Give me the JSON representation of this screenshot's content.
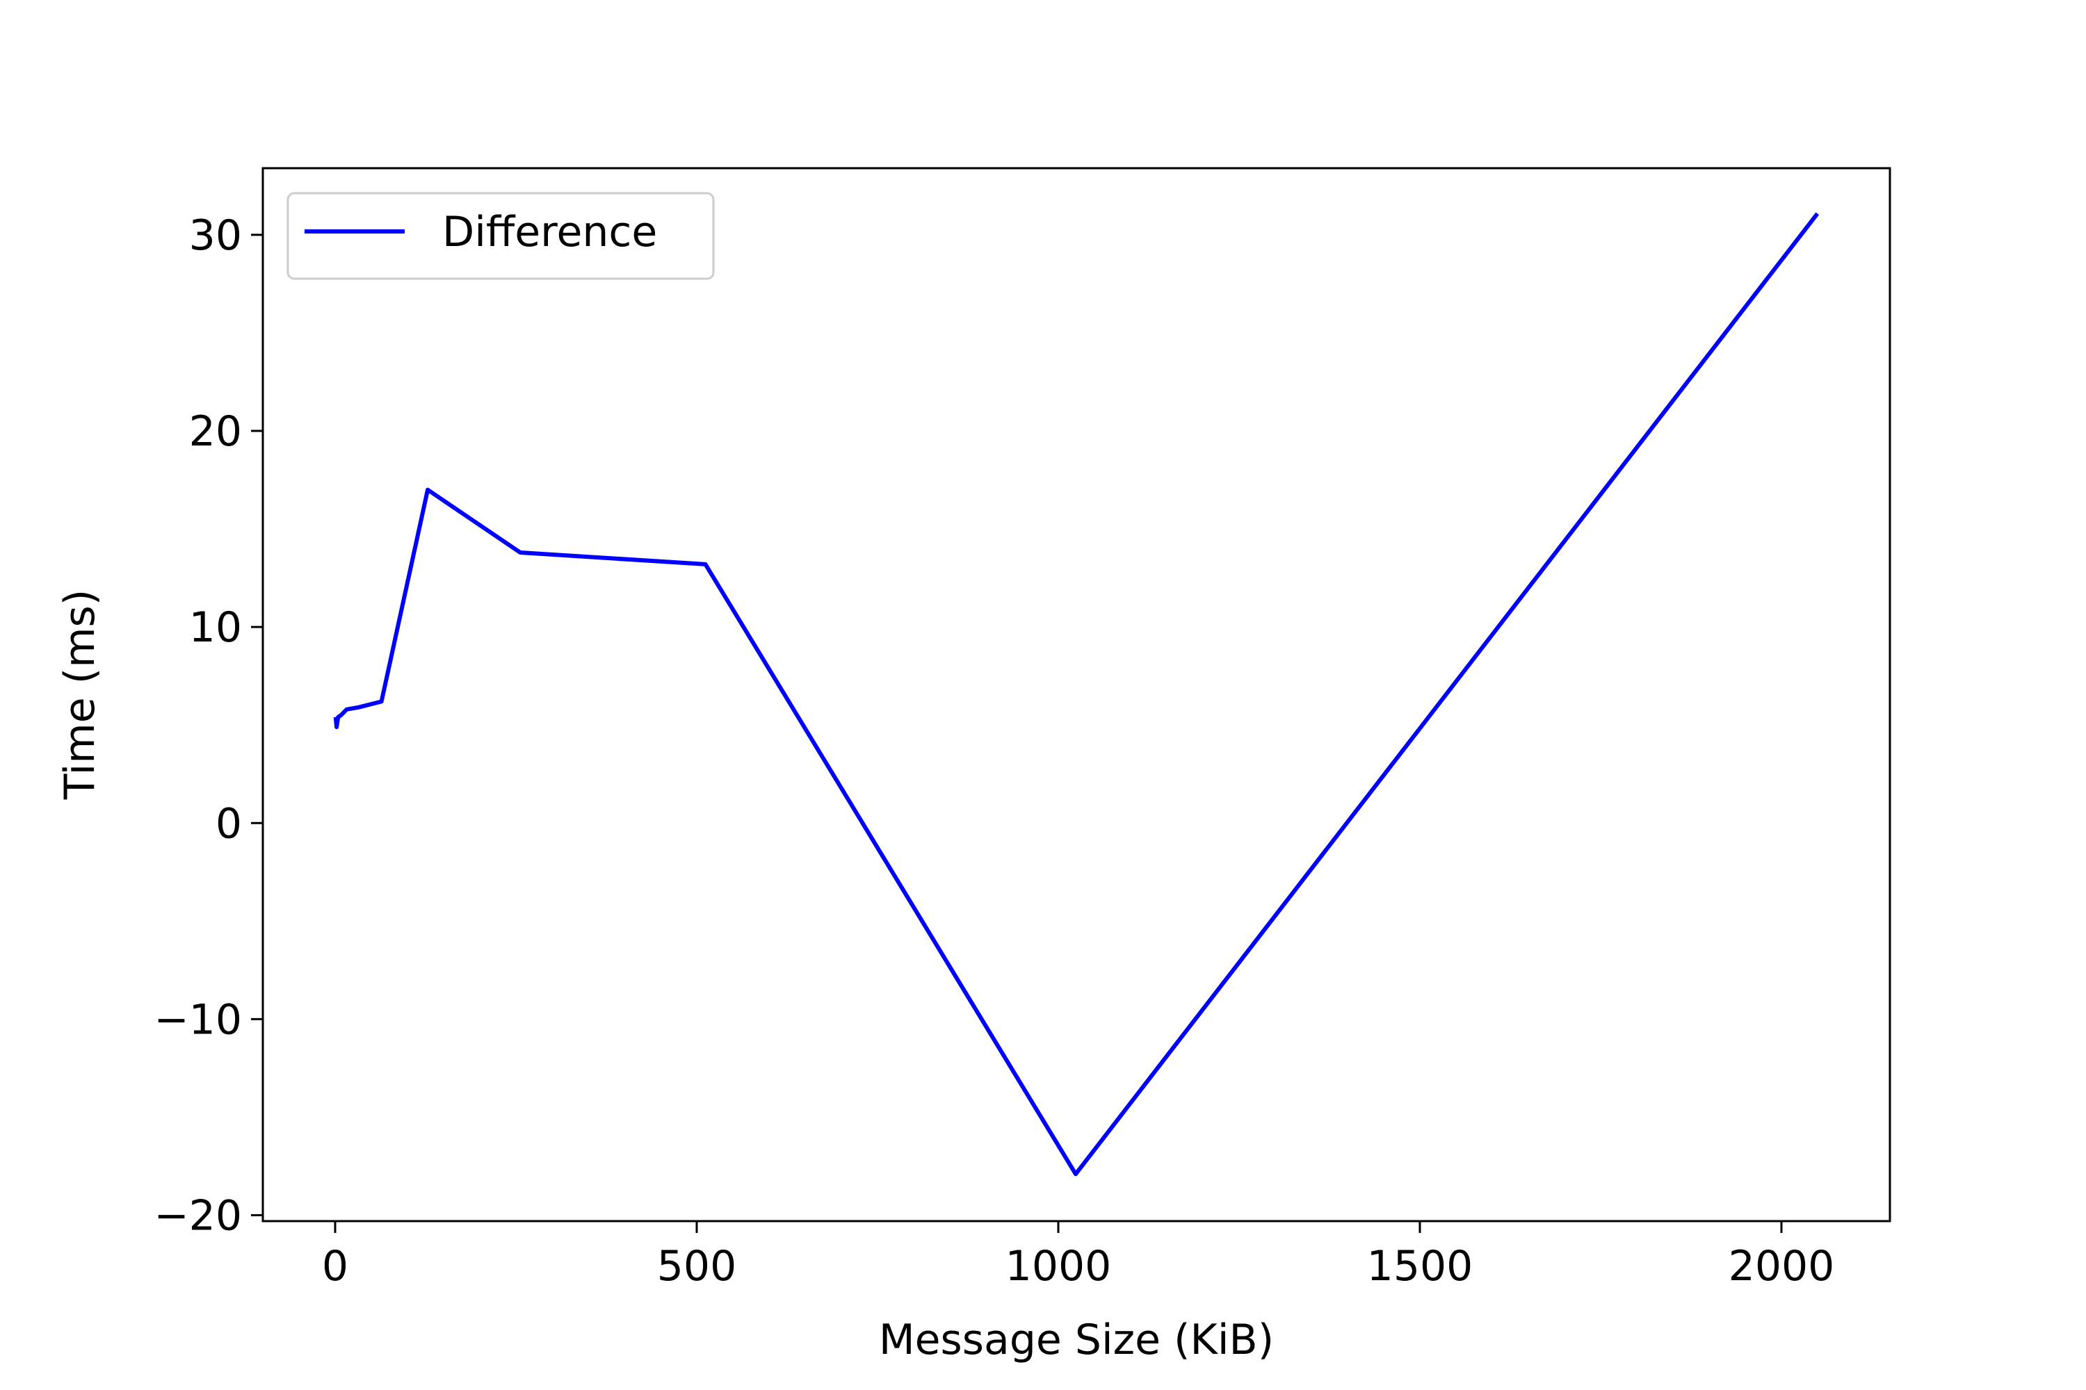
{
  "chart_data": {
    "type": "line",
    "xlabel": "Message Size (KiB)",
    "ylabel": "Time (ms)",
    "xlim": [
      -100,
      2150
    ],
    "ylim": [
      -20.3,
      33.4
    ],
    "x_ticks": [
      0,
      500,
      1000,
      1500,
      2000
    ],
    "x_tick_labels": [
      "0",
      "500",
      "1000",
      "1500",
      "2000"
    ],
    "y_ticks": [
      -20,
      -10,
      0,
      10,
      20,
      30
    ],
    "y_tick_labels": [
      "−20",
      "−10",
      "0",
      "10",
      "20",
      "30"
    ],
    "grid": false,
    "legend_position": "top-left",
    "series": [
      {
        "name": "Difference",
        "color": "#0000ff",
        "points": [
          [
            1,
            5.3
          ],
          [
            2,
            4.9
          ],
          [
            4,
            5.4
          ],
          [
            8,
            5.5
          ],
          [
            16,
            5.8
          ],
          [
            32,
            5.9
          ],
          [
            64,
            6.2
          ],
          [
            128,
            17.0
          ],
          [
            256,
            13.8
          ],
          [
            512,
            13.2
          ],
          [
            1024,
            -17.9
          ],
          [
            2048,
            31.0
          ]
        ]
      }
    ]
  }
}
